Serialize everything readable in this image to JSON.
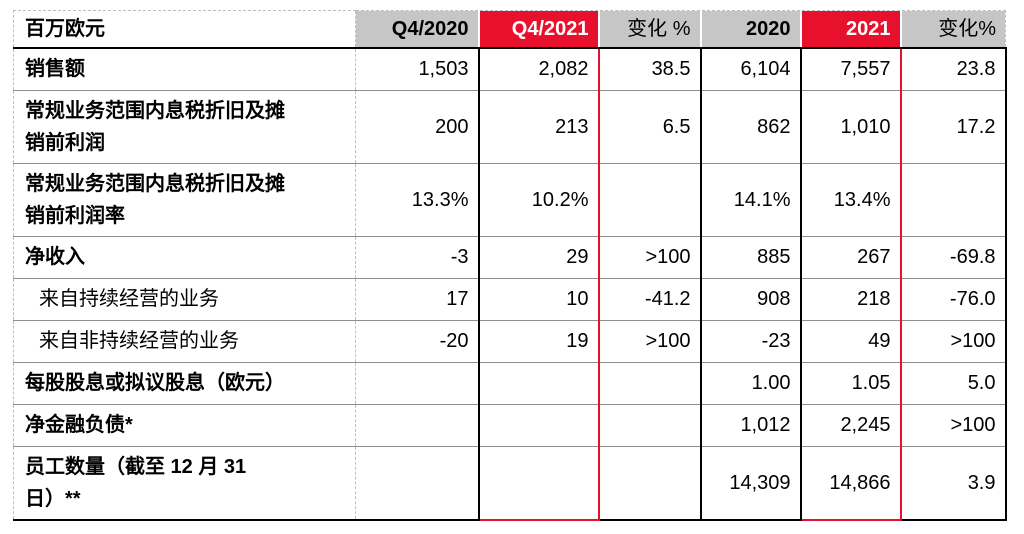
{
  "colors": {
    "accent_red": "#e8112d",
    "header_gray": "#c6c6c6",
    "row_separator_gray": "#8f8f8f",
    "dashed_border_gray": "#bdbdbd",
    "line_black": "#000000",
    "header_text_on_red": "#ffffff"
  },
  "table": {
    "header": {
      "metric_label": "百万欧元",
      "columns": [
        {
          "key": "q4-2020",
          "label": "Q4/2020",
          "style": "gray"
        },
        {
          "key": "q4-2021",
          "label": "Q4/2021",
          "style": "red"
        },
        {
          "key": "change-quarter",
          "label": "变化 %",
          "style": "graylight"
        },
        {
          "key": "fy-2020",
          "label": "2020",
          "style": "gray"
        },
        {
          "key": "fy-2021",
          "label": "2021",
          "style": "red"
        },
        {
          "key": "change-year",
          "label": "变化%",
          "style": "graylight"
        }
      ]
    },
    "rows": [
      {
        "label": "销售额",
        "indent": false,
        "values": [
          "1,503",
          "2,082",
          "38.5",
          "6,104",
          "7,557",
          "23.8"
        ]
      },
      {
        "label": "常规业务范围内息税折旧及摊\n销前利润",
        "indent": false,
        "values": [
          "200",
          "213",
          "6.5",
          "862",
          "1,010",
          "17.2"
        ]
      },
      {
        "label": "常规业务范围内息税折旧及摊\n销前利润率",
        "indent": false,
        "values": [
          "13.3%",
          "10.2%",
          "",
          "14.1%",
          "13.4%",
          ""
        ]
      },
      {
        "label": "净收入",
        "indent": false,
        "values": [
          "-3",
          "29",
          ">100",
          "885",
          "267",
          "-69.8"
        ]
      },
      {
        "label": "来自持续经营的业务",
        "indent": true,
        "values": [
          "17",
          "10",
          "-41.2",
          "908",
          "218",
          "-76.0"
        ]
      },
      {
        "label": "来自非持续经营的业务",
        "indent": true,
        "values": [
          "-20",
          "19",
          ">100",
          "-23",
          "49",
          ">100"
        ]
      },
      {
        "label": "每股股息或拟议股息（欧元）",
        "indent": false,
        "values": [
          "",
          "",
          "",
          "1.00",
          "1.05",
          "5.0"
        ]
      },
      {
        "label": "净金融负债*",
        "indent": false,
        "values": [
          "",
          "",
          "",
          "1,012",
          "2,245",
          ">100"
        ]
      },
      {
        "label": "员工数量（截至 12 月 31\n日）**",
        "indent": false,
        "values": [
          "",
          "",
          "",
          "14,309",
          "14,866",
          "3.9"
        ]
      }
    ]
  }
}
